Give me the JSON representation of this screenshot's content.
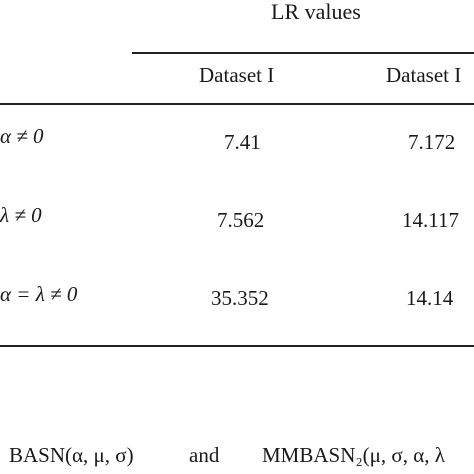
{
  "table": {
    "group_header": "LR values",
    "columns": [
      "Dataset I",
      "Dataset I"
    ],
    "rows": [
      {
        "hypothesis": "α ≠ 0",
        "values": [
          "7.41",
          "7.172"
        ]
      },
      {
        "hypothesis": "λ ≠ 0",
        "values": [
          "7.562",
          "14.117"
        ]
      },
      {
        "hypothesis": "α = λ ≠ 0",
        "values": [
          "35.352",
          "14.14"
        ]
      }
    ]
  },
  "caption": {
    "model_a": "BASN(α, μ, σ)",
    "connector": "and",
    "model_b": "MMBASN₂(μ, σ, α, λ"
  }
}
